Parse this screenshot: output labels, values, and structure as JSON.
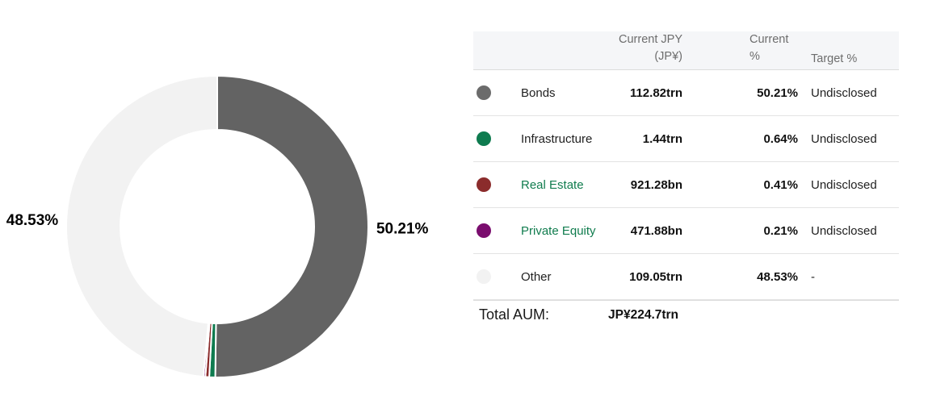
{
  "chart_data": {
    "type": "donut",
    "title": "",
    "start_angle": "top",
    "direction": "clockwise",
    "inner_radius_ratio": 0.64,
    "slices": [
      {
        "name": "Bonds",
        "pct": 50.21,
        "color": "#636363",
        "label": "50.21%",
        "label_visible": true
      },
      {
        "name": "Infrastructure",
        "pct": 0.64,
        "color": "#0e7b4f",
        "label": "0.64%",
        "label_visible": false
      },
      {
        "name": "Real Estate",
        "pct": 0.41,
        "color": "#8b2c2c",
        "label": "0.41%",
        "label_visible": false
      },
      {
        "name": "Private Equity",
        "pct": 0.21,
        "color": "#7a0d6e",
        "label": "0.21%",
        "label_visible": false
      },
      {
        "name": "Other",
        "pct": 48.53,
        "color": "#f2f2f2",
        "label": "48.53%",
        "label_visible": true
      }
    ]
  },
  "table": {
    "headers": {
      "asset": "",
      "current_jpy": "Current JPY (JP¥)",
      "current_pct": "Current %",
      "target_pct": "Target %"
    },
    "rows": [
      {
        "name": "Bonds",
        "jpy": "112.82trn",
        "pct": "50.21%",
        "target": "Undisclosed",
        "dot_color": "#6b6b6b",
        "link": false
      },
      {
        "name": "Infrastructure",
        "jpy": "1.44trn",
        "pct": "0.64%",
        "target": "Undisclosed",
        "dot_color": "#0e7b4f",
        "link": false
      },
      {
        "name": "Real Estate",
        "jpy": "921.28bn",
        "pct": "0.41%",
        "target": "Undisclosed",
        "dot_color": "#8b2c2c",
        "link": true
      },
      {
        "name": "Private Equity",
        "jpy": "471.88bn",
        "pct": "0.21%",
        "target": "Undisclosed",
        "dot_color": "#7a0d6e",
        "link": true
      },
      {
        "name": "Other",
        "jpy": "109.05trn",
        "pct": "48.53%",
        "target": "-",
        "dot_color": "#f2f2f2",
        "link": false
      }
    ],
    "total_label": "Total AUM:",
    "total_value": "JP¥224.7trn"
  }
}
